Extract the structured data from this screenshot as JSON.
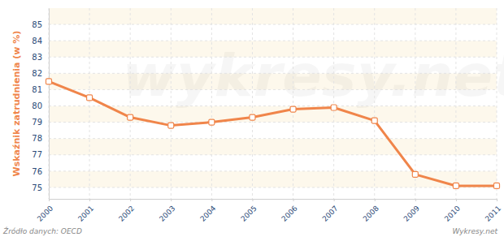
{
  "chart_data": {
    "type": "line",
    "y_label": "Wskaźnik zatrudnienia (w %)",
    "categories": [
      "2000",
      "2001",
      "2002",
      "2003",
      "2004",
      "2005",
      "2006",
      "2007",
      "2008",
      "2009",
      "2010",
      "2011"
    ],
    "values": [
      81.5,
      80.5,
      79.3,
      78.8,
      79.0,
      79.3,
      79.8,
      79.9,
      79.1,
      75.8,
      75.1,
      75.1
    ],
    "color": "#f0854a",
    "marker": "square",
    "ylim": [
      74.3,
      86
    ],
    "yticks": [
      75,
      76,
      77,
      78,
      79,
      80,
      81,
      82,
      83,
      84,
      85
    ],
    "grid": true,
    "annotations": [
      "Źródło danych: OECD",
      "Wykresy.net",
      "wykresy.net"
    ]
  }
}
